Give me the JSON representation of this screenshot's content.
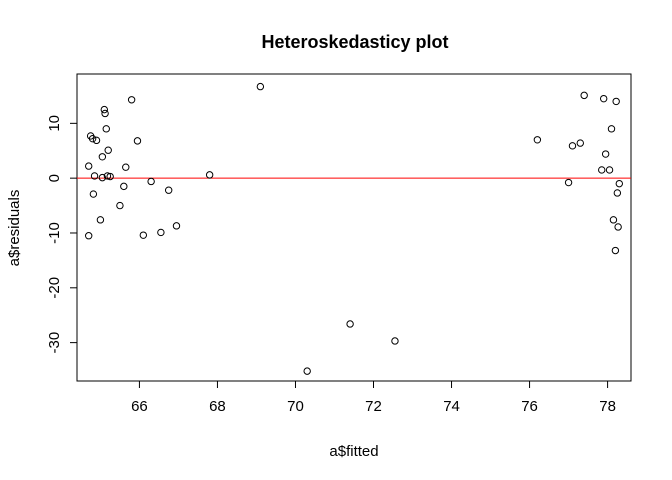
{
  "chart_data": {
    "type": "scatter",
    "title": "Heteroskedasticy plot",
    "xlabel": "a$fitted",
    "ylabel": "a$residuals",
    "xlim": [
      64.4,
      78.6
    ],
    "ylim": [
      -37,
      19
    ],
    "xticks": [
      66,
      68,
      70,
      72,
      74,
      76,
      78
    ],
    "yticks": [
      -30,
      -20,
      -10,
      0,
      10
    ],
    "grid": false,
    "legend": "none",
    "point_color": "#000000",
    "reference_line": {
      "y": 0,
      "color": "#ff0000"
    },
    "points": [
      [
        64.7,
        -10.5
      ],
      [
        64.7,
        2.2
      ],
      [
        64.75,
        7.7
      ],
      [
        64.8,
        7.2
      ],
      [
        64.82,
        -2.9
      ],
      [
        64.85,
        0.4
      ],
      [
        64.9,
        6.9
      ],
      [
        65.0,
        -7.6
      ],
      [
        65.05,
        3.9
      ],
      [
        65.05,
        0.1
      ],
      [
        65.1,
        12.5
      ],
      [
        65.12,
        11.8
      ],
      [
        65.15,
        9.0
      ],
      [
        65.18,
        0.4
      ],
      [
        65.2,
        5.1
      ],
      [
        65.25,
        0.3
      ],
      [
        65.5,
        -5.0
      ],
      [
        65.6,
        -1.5
      ],
      [
        65.65,
        2.0
      ],
      [
        65.8,
        14.3
      ],
      [
        65.95,
        6.8
      ],
      [
        66.1,
        -10.4
      ],
      [
        66.3,
        -0.6
      ],
      [
        66.55,
        -9.9
      ],
      [
        66.75,
        -2.2
      ],
      [
        66.95,
        -8.7
      ],
      [
        67.8,
        0.6
      ],
      [
        69.1,
        16.7
      ],
      [
        70.3,
        -35.2
      ],
      [
        71.4,
        -26.6
      ],
      [
        72.55,
        -29.7
      ],
      [
        76.2,
        7.0
      ],
      [
        77.0,
        -0.8
      ],
      [
        77.1,
        5.9
      ],
      [
        77.3,
        6.4
      ],
      [
        77.4,
        15.1
      ],
      [
        77.85,
        1.5
      ],
      [
        77.9,
        14.5
      ],
      [
        77.95,
        4.4
      ],
      [
        78.05,
        1.5
      ],
      [
        78.1,
        9.0
      ],
      [
        78.15,
        -7.6
      ],
      [
        78.2,
        -13.2
      ],
      [
        78.22,
        14.0
      ],
      [
        78.25,
        -2.7
      ],
      [
        78.27,
        -8.9
      ],
      [
        78.3,
        -1.0
      ]
    ]
  }
}
